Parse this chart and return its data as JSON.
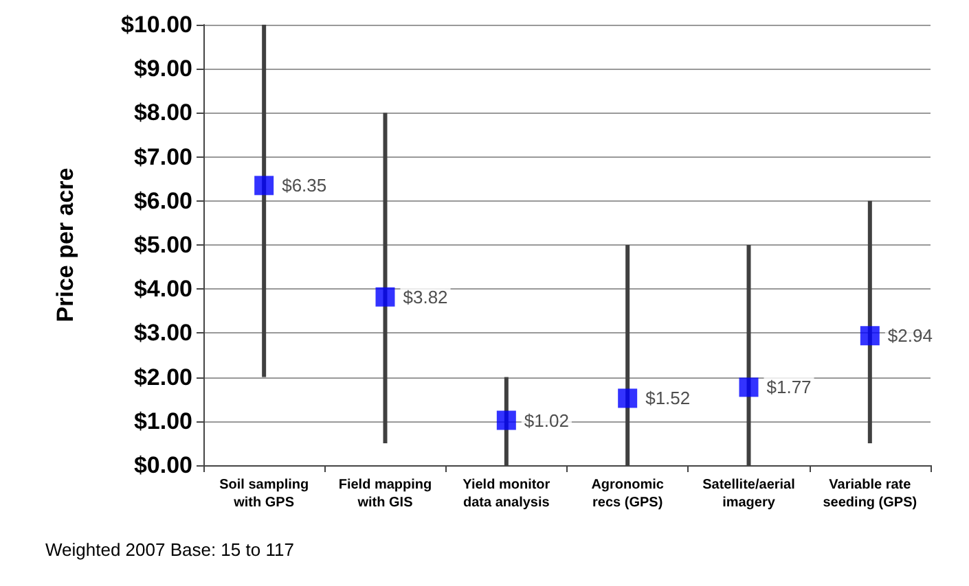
{
  "chart_data": {
    "type": "scatter",
    "ylabel": "Price per acre",
    "categories": [
      "Soil sampling\nwith GPS",
      "Field mapping\nwith GIS",
      "Yield monitor\ndata analysis",
      "Agronomic\nrecs (GPS)",
      "Satellite/aerial\nimagery",
      "Variable rate\nseeding (GPS)"
    ],
    "values": [
      6.35,
      3.82,
      1.02,
      1.52,
      1.77,
      2.94
    ],
    "errors": [
      [
        2,
        10
      ],
      [
        0.5,
        8
      ],
      [
        0,
        2
      ],
      [
        0,
        5
      ],
      [
        0,
        5
      ],
      [
        0.5,
        6
      ]
    ],
    "value_labels": [
      "$6.35",
      "$3.82",
      "$1.02",
      "$1.52",
      "$1.77",
      "$2.94"
    ],
    "color": "#0000ff",
    "marker": "square",
    "grid": "y",
    "ylim": [
      0,
      10
    ],
    "yticks": [
      {
        "value": 0,
        "label": "$0.00"
      },
      {
        "value": 1,
        "label": "$1.00"
      },
      {
        "value": 2,
        "label": "$2.00"
      },
      {
        "value": 3,
        "label": "$3.00"
      },
      {
        "value": 4,
        "label": "$4.00"
      },
      {
        "value": 5,
        "label": "$5.00"
      },
      {
        "value": 6,
        "label": "$6.00"
      },
      {
        "value": 7,
        "label": "$7.00"
      },
      {
        "value": 8,
        "label": "$8.00"
      },
      {
        "value": 9,
        "label": "$9.00"
      },
      {
        "value": 10,
        "label": "$10.00"
      }
    ],
    "annotations": [
      "Weighted 2007 Base: 15 to 117"
    ]
  }
}
